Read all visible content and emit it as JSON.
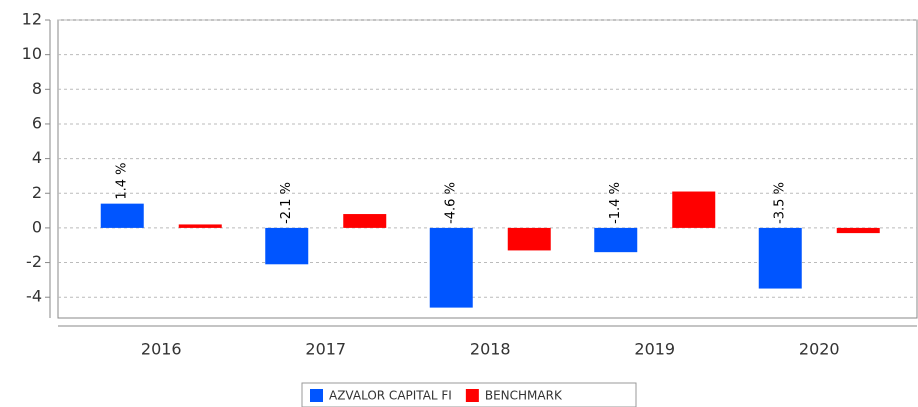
{
  "chart_data": {
    "type": "bar",
    "categories": [
      "2016",
      "2017",
      "2018",
      "2019",
      "2020"
    ],
    "series": [
      {
        "name": "AZVALOR CAPITAL FI",
        "color": "#0055ff",
        "values": [
          1.4,
          -2.1,
          -4.6,
          -1.4,
          -3.5
        ],
        "value_labels": [
          "1.4 %",
          "-2.1 %",
          "-4.6 %",
          "-1.4 %",
          "-3.5 %"
        ]
      },
      {
        "name": "BENCHMARK",
        "color": "#ff0000",
        "values": [
          0.2,
          0.8,
          -1.3,
          2.1,
          -0.3
        ]
      }
    ],
    "ylim": [
      -5.2,
      12
    ],
    "yticks": [
      -4,
      -2,
      0,
      2,
      4,
      6,
      8,
      10,
      12
    ],
    "grid": true,
    "legend": "bottom"
  }
}
